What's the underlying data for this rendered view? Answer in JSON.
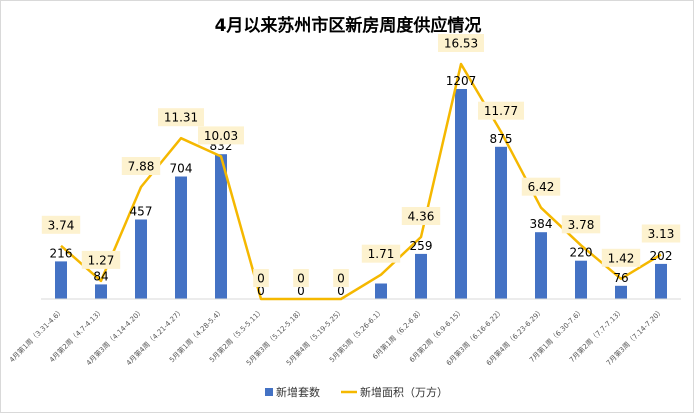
{
  "chart_data": {
    "type": "bar+line",
    "title": "4月以来苏州市区新房周度供应情况",
    "categories": [
      "4月第1周（3.31-4.6）",
      "4月第2周（4.7-4.13）",
      "4月第3周（4.14-4.20）",
      "4月第4周（4.21-4.27）",
      "5月第1周（4.28-5.4）",
      "5月第2周（5.5-5.11）",
      "5月第3周（5.12-5.18）",
      "5月第4周（5.19-5.25）",
      "5月第5周（5.26-6.1）",
      "6月第1周（6.2-6.8）",
      "6月第2周（6.9-6.15）",
      "6月第3周（6.16-6.22）",
      "6月第4周（6.23-6.29）",
      "7月第1周（6.30-7.6）",
      "7月第2周（7.7-7.13）",
      "7月第3周（7.14-7.20）"
    ],
    "series": [
      {
        "name": "新增套数",
        "type": "bar",
        "color": "#4472c4",
        "values": [
          216,
          84,
          457,
          704,
          832,
          0,
          0,
          0,
          89,
          259,
          1207,
          875,
          384,
          220,
          76,
          202
        ],
        "labels": [
          "216",
          "84",
          "457",
          "704",
          "832",
          "0",
          "0",
          "0",
          "",
          "259",
          "1207",
          "875",
          "384",
          "220",
          "76",
          "202"
        ]
      },
      {
        "name": "新增面积（万方）",
        "type": "line",
        "color": "#f5b800",
        "values": [
          3.74,
          1.27,
          7.88,
          11.31,
          10.03,
          0,
          0,
          0,
          1.71,
          4.36,
          16.53,
          11.77,
          6.42,
          3.78,
          1.42,
          3.13
        ],
        "labels": [
          "3.74",
          "1.27",
          "7.88",
          "11.31",
          "10.03",
          "0",
          "0",
          "0",
          "1.71",
          "4.36",
          "16.53",
          "11.77",
          "6.42",
          "3.78",
          "1.42",
          "3.13"
        ]
      }
    ],
    "legend_position": "bottom",
    "grid": false
  }
}
